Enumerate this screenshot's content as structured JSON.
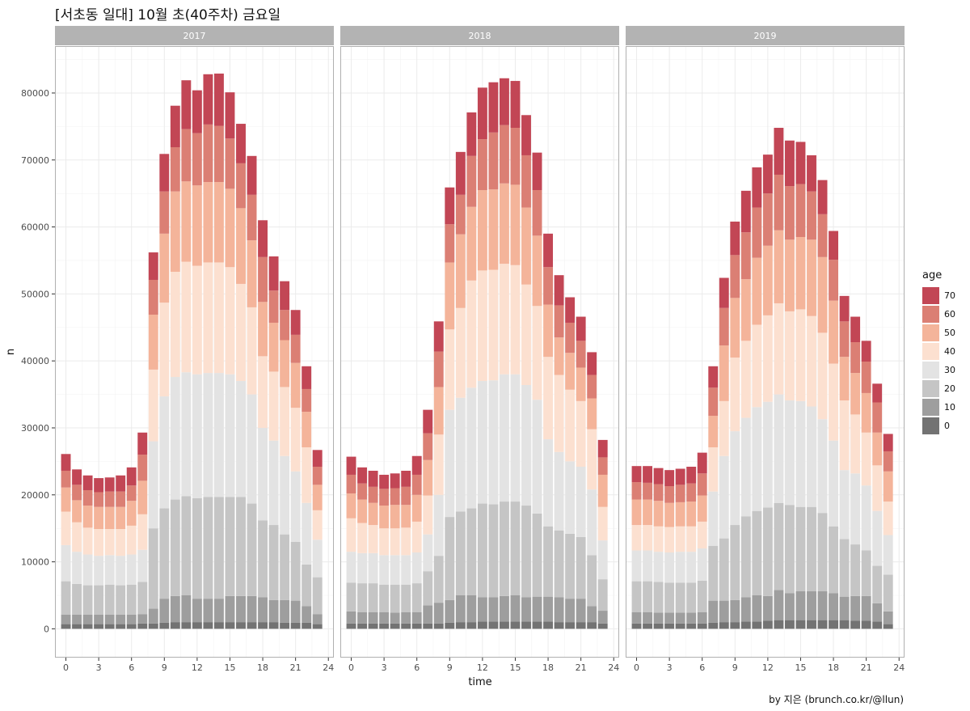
{
  "chart_data": {
    "type": "bar",
    "stacked": true,
    "title": "[서초동 일대] 10월 초(40주차) 금요일",
    "caption": "by 지은 (brunch.co.kr/@llun)",
    "xlabel": "time",
    "ylabel": "n",
    "xlim": [
      -1,
      24.5
    ],
    "ylim": [
      -4300,
      87000
    ],
    "x_ticks": [
      0,
      3,
      6,
      9,
      12,
      15,
      18,
      21,
      24
    ],
    "y_ticks": [
      0,
      10000,
      20000,
      30000,
      40000,
      50000,
      60000,
      70000,
      80000
    ],
    "grid": true,
    "facet_by": "year",
    "legend": {
      "title": "age",
      "position": "right",
      "keys": [
        "70",
        "60",
        "50",
        "40",
        "30",
        "20",
        "10",
        "0"
      ]
    },
    "colors": {
      "0": "#737373",
      "10": "#9e9e9e",
      "20": "#c5c5c5",
      "30": "#e3e3e3",
      "40": "#fce0d0",
      "50": "#f4b49a",
      "60": "#db7f74",
      "70": "#c24655",
      "panel_border": "#b0b0b0",
      "strip": "#b3b3b3",
      "strip_text": "#ffffff",
      "grid": "#ebebeb"
    },
    "x": [
      0,
      1,
      2,
      3,
      4,
      5,
      6,
      7,
      8,
      9,
      10,
      11,
      12,
      13,
      14,
      15,
      16,
      17,
      18,
      19,
      20,
      21,
      22,
      23
    ],
    "stack_order": [
      "0",
      "10",
      "20",
      "30",
      "40",
      "50",
      "60",
      "70"
    ],
    "panels": [
      {
        "label": "2017",
        "series": [
          {
            "name": "0",
            "values": [
              700,
              700,
              700,
              700,
              700,
              700,
              700,
              800,
              800,
              900,
              1000,
              1000,
              1000,
              1000,
              1000,
              1000,
              1000,
              1000,
              1000,
              1000,
              900,
              900,
              900,
              700
            ]
          },
          {
            "name": "10",
            "values": [
              1400,
              1400,
              1400,
              1400,
              1400,
              1400,
              1400,
              1400,
              2200,
              3600,
              3900,
              4000,
              3500,
              3500,
              3500,
              3900,
              3900,
              3900,
              3700,
              3300,
              3400,
              3300,
              2500,
              1500
            ]
          },
          {
            "name": "20",
            "values": [
              5000,
              4600,
              4400,
              4400,
              4500,
              4400,
              4500,
              4800,
              12000,
              13500,
              14400,
              14800,
              15000,
              15200,
              15200,
              14800,
              14800,
              13800,
              11500,
              11200,
              9800,
              8800,
              6200,
              5500
            ]
          },
          {
            "name": "30",
            "values": [
              5400,
              4800,
              4600,
              4400,
              4400,
              4400,
              4500,
              4800,
              13000,
              16700,
              18300,
              18500,
              18500,
              18500,
              18500,
              18300,
              17300,
              16300,
              13800,
              12600,
              11700,
              10500,
              9200,
              5600
            ]
          },
          {
            "name": "40",
            "values": [
              5000,
              4400,
              4000,
              4000,
              3900,
              4000,
              4300,
              5300,
              10700,
              14000,
              15700,
              16500,
              16200,
              16500,
              16500,
              16000,
              14500,
              13000,
              10700,
              10300,
              10300,
              9500,
              8300,
              4400
            ]
          },
          {
            "name": "50",
            "values": [
              3600,
              3300,
              3300,
              3300,
              3300,
              3300,
              3700,
              5000,
              8200,
              10300,
              12000,
              12000,
              12000,
              12000,
              12000,
              11700,
              11300,
              10000,
              8100,
              7300,
              7000,
              6700,
              5300,
              3800
            ]
          },
          {
            "name": "60",
            "values": [
              2500,
              2300,
              2300,
              2200,
              2300,
              2300,
              2300,
              3900,
              5200,
              6300,
              6600,
              7800,
              7800,
              8600,
              8400,
              7500,
              6700,
              6800,
              6700,
              4800,
              4500,
              4200,
              3400,
              2700
            ]
          },
          {
            "name": "70",
            "values": [
              2500,
              2300,
              2200,
              2100,
              2100,
              2400,
              2700,
              3300,
              4100,
              5600,
              6200,
              7300,
              6400,
              7500,
              7800,
              6900,
              5900,
              5800,
              5500,
              5100,
              4300,
              3700,
              3400,
              2500
            ]
          }
        ]
      },
      {
        "label": "2018",
        "series": [
          {
            "name": "0",
            "values": [
              800,
              800,
              800,
              800,
              800,
              800,
              800,
              800,
              800,
              900,
              1000,
              1000,
              1100,
              1100,
              1100,
              1100,
              1100,
              1100,
              1100,
              1000,
              1000,
              1000,
              1000,
              800
            ]
          },
          {
            "name": "10",
            "values": [
              1800,
              1700,
              1700,
              1700,
              1600,
              1700,
              1700,
              2700,
              3100,
              3400,
              4000,
              4000,
              3600,
              3600,
              3800,
              3900,
              3600,
              3700,
              3700,
              3700,
              3500,
              3500,
              2400,
              1900
            ]
          },
          {
            "name": "20",
            "values": [
              4300,
              4300,
              4300,
              4100,
              4200,
              4100,
              4300,
              5100,
              7000,
              12400,
              12500,
              13000,
              14000,
              13900,
              14100,
              14000,
              13700,
              12400,
              10500,
              10000,
              9700,
              9200,
              7600,
              4700
            ]
          },
          {
            "name": "30",
            "values": [
              4600,
              4500,
              4500,
              4400,
              4400,
              4400,
              4600,
              5500,
              9100,
              16000,
              17000,
              18000,
              18300,
              18500,
              19000,
              19000,
              18000,
              17000,
              13000,
              11700,
              10800,
              10500,
              9800,
              5800
            ]
          },
          {
            "name": "40",
            "values": [
              5000,
              4500,
              4200,
              4000,
              4000,
              4100,
              4600,
              5800,
              9000,
              12000,
              13400,
              16000,
              16500,
              16500,
              16500,
              16300,
              15000,
              14000,
              12300,
              11500,
              10700,
              9800,
              9000,
              5000
            ]
          },
          {
            "name": "50",
            "values": [
              3700,
              3500,
              3300,
              3400,
              3500,
              3400,
              4000,
              5300,
              7100,
              10000,
              11000,
              11000,
              12000,
              12000,
              12000,
              12000,
              11500,
              10500,
              7800,
              5600,
              5500,
              5000,
              4600,
              4800
            ]
          },
          {
            "name": "60",
            "values": [
              2800,
              2400,
              2400,
              2500,
              2500,
              2700,
              3000,
              4000,
              5300,
              5700,
              5900,
              7600,
              7600,
              8500,
              8700,
              8500,
              7800,
              6800,
              5600,
              4800,
              4500,
              4000,
              3500,
              2600
            ]
          },
          {
            "name": "70",
            "values": [
              2700,
              2400,
              2400,
              2100,
              2200,
              2400,
              2800,
              3500,
              4500,
              5500,
              6400,
              6500,
              7700,
              7500,
              7000,
              7000,
              6000,
              5600,
              5000,
              4500,
              3800,
              3600,
              3400,
              2600
            ]
          }
        ]
      },
      {
        "label": "2019",
        "series": [
          {
            "name": "0",
            "values": [
              800,
              800,
              800,
              800,
              800,
              800,
              800,
              900,
              1000,
              1000,
              1100,
              1100,
              1200,
              1300,
              1300,
              1300,
              1300,
              1300,
              1300,
              1300,
              1200,
              1200,
              1100,
              700
            ]
          },
          {
            "name": "10",
            "values": [
              1700,
              1700,
              1600,
              1600,
              1600,
              1600,
              1700,
              3300,
              3200,
              3300,
              3600,
              3900,
              3700,
              4500,
              4000,
              4300,
              4300,
              4300,
              4000,
              3500,
              3700,
              3700,
              2700,
              1900
            ]
          },
          {
            "name": "20",
            "values": [
              4600,
              4600,
              4600,
              4500,
              4500,
              4500,
              4700,
              8200,
              9300,
              11200,
              12100,
              12600,
              13200,
              13000,
              13200,
              12600,
              12600,
              11700,
              10000,
              8600,
              7700,
              6800,
              5600,
              5500
            ]
          },
          {
            "name": "30",
            "values": [
              4600,
              4600,
              4500,
              4500,
              4600,
              4600,
              4800,
              8100,
              12300,
              14000,
              14700,
              15500,
              15800,
              16200,
              15600,
              15800,
              15000,
              14000,
              12800,
              10300,
              10600,
              9700,
              8200,
              5900
            ]
          },
          {
            "name": "40",
            "values": [
              3800,
              3800,
              3800,
              3800,
              3800,
              3800,
              4000,
              6600,
              8200,
              11000,
              11500,
              12300,
              12900,
              13600,
              13300,
              13700,
              13500,
              12900,
              11500,
              10400,
              8800,
              7900,
              6800,
              5000
            ]
          },
          {
            "name": "50",
            "values": [
              3800,
              3800,
              3800,
              3600,
              3600,
              3700,
              3900,
              4700,
              8300,
              8900,
              9200,
              10000,
              10400,
              10900,
              10700,
              10800,
              11400,
              11300,
              9400,
              6500,
              6200,
              5900,
              4900,
              4500
            ]
          },
          {
            "name": "60",
            "values": [
              2600,
              2500,
              2500,
              2500,
              2600,
              2700,
              3300,
              4200,
              5600,
              6400,
              7000,
              7500,
              7800,
              8300,
              8000,
              7900,
              7200,
              6400,
              6100,
              5300,
              4600,
              4700,
              4500,
              3000
            ]
          },
          {
            "name": "70",
            "values": [
              2400,
              2500,
              2400,
              2400,
              2400,
              2500,
              3100,
              3200,
              4500,
              5000,
              6200,
              6000,
              5800,
              7000,
              6800,
              6300,
              5400,
              5100,
              4300,
              3800,
              3800,
              3100,
              2800,
              2600
            ]
          }
        ]
      }
    ]
  }
}
